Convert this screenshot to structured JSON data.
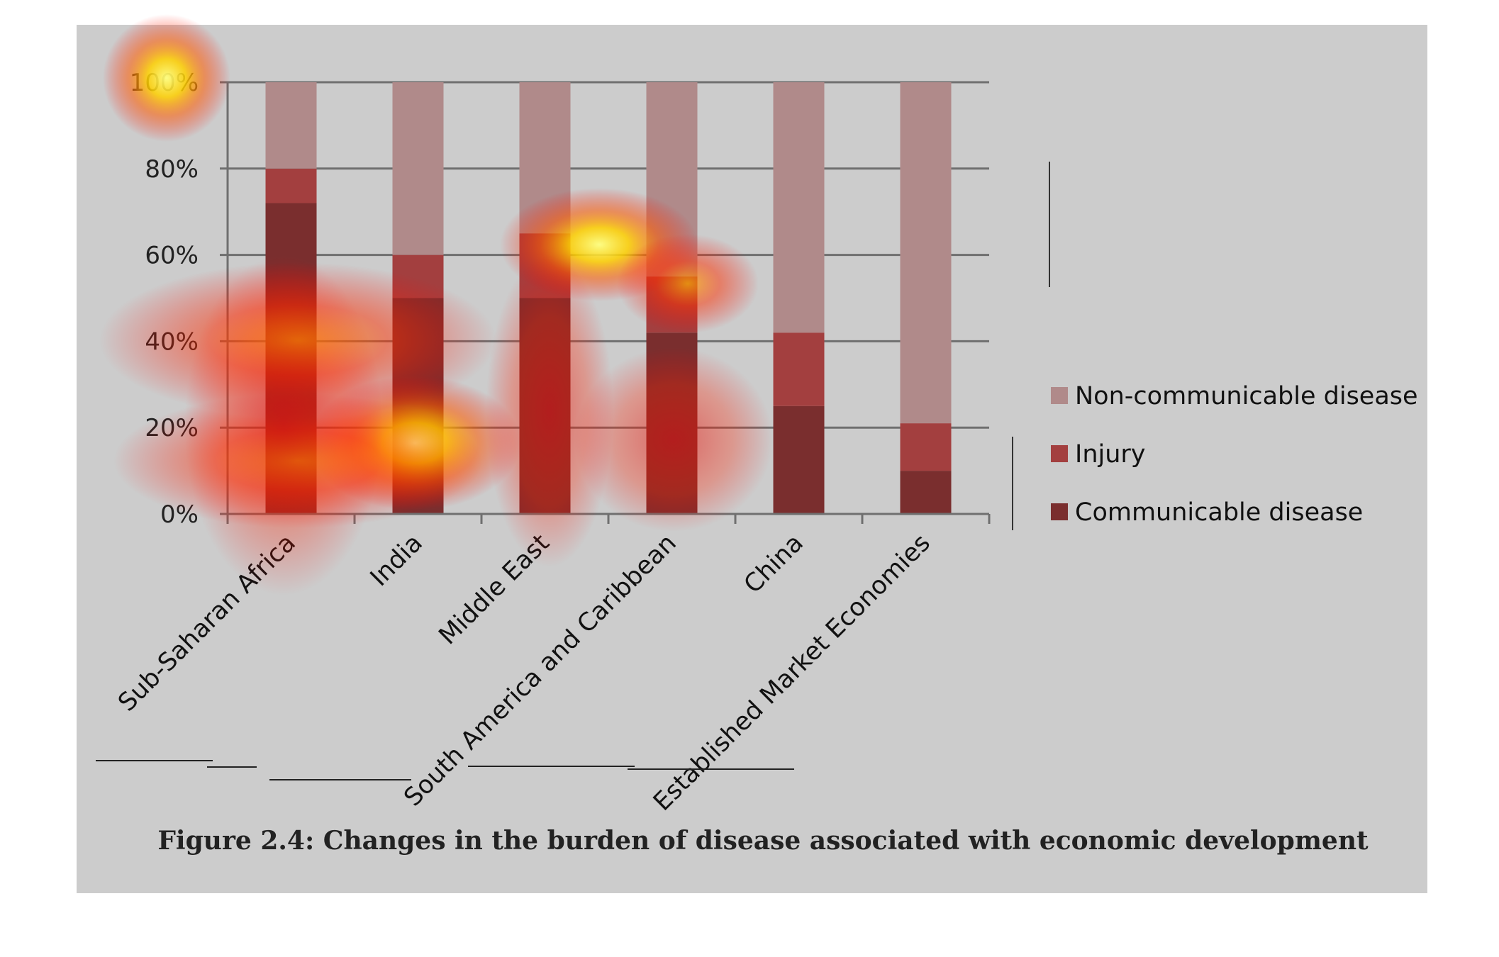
{
  "chart_data": {
    "type": "bar",
    "stacked": true,
    "percent_stacked": true,
    "categories": [
      "Sub-Saharan Africa",
      "India",
      "Middle East",
      "South America and Caribbean",
      "China",
      "Established Market Economies"
    ],
    "series": [
      {
        "name": "Communicable disease",
        "values": [
          72,
          50,
          50,
          42,
          25,
          10
        ],
        "color": "#7a2e2e"
      },
      {
        "name": "Injury",
        "values": [
          8,
          10,
          15,
          13,
          17,
          11
        ],
        "color": "#a33f3f"
      },
      {
        "name": "Non-communicable disease",
        "values": [
          20,
          40,
          35,
          45,
          58,
          79
        ],
        "color": "#b08a8a"
      }
    ],
    "yticks": [
      "0%",
      "20%",
      "40%",
      "60%",
      "80%",
      "100%"
    ],
    "ylim": [
      0,
      100
    ],
    "grid": true,
    "legend_position": "right",
    "legend_order": [
      "Non-communicable disease",
      "Injury",
      "Communicable disease"
    ],
    "title": "",
    "xlabel": "",
    "ylabel": ""
  },
  "caption": "Figure 2.4: Changes in the burden of disease associated with economic development",
  "colors": {
    "panel_background": "#cccccc",
    "page_background": "#ffffff",
    "gridline": "#6f6f6f"
  },
  "heatmap_overlay": true
}
